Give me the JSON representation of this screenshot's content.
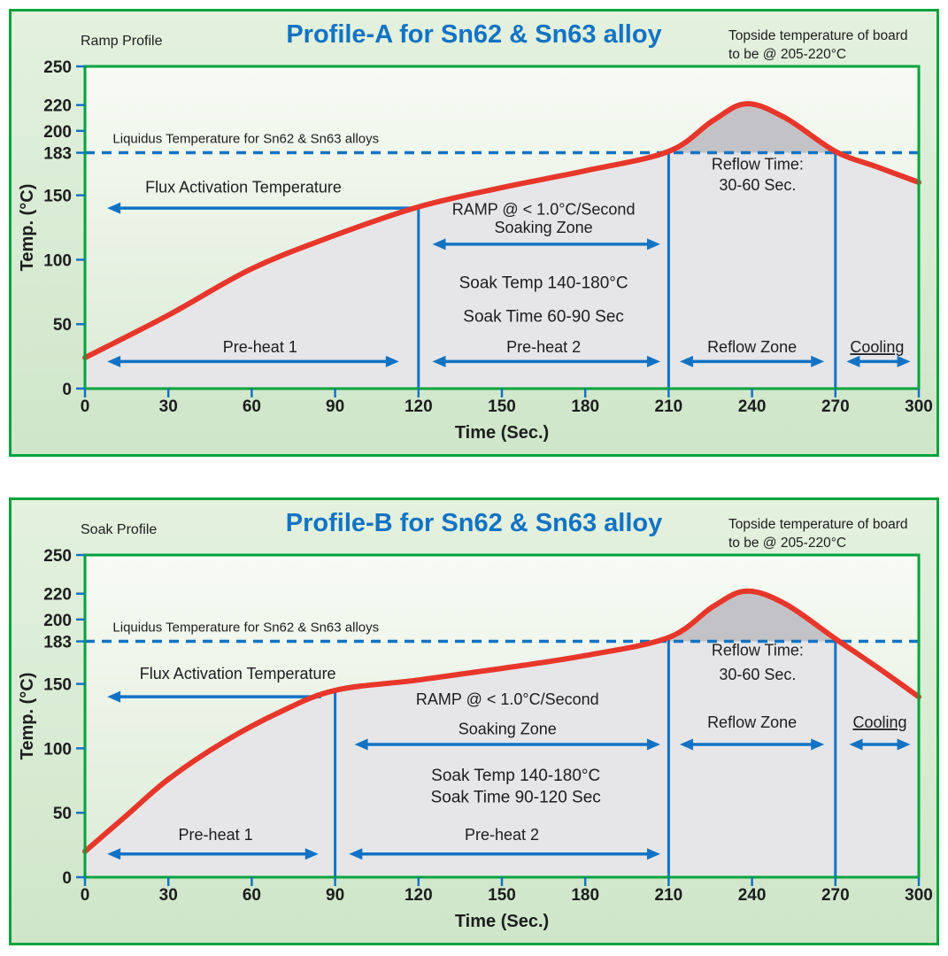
{
  "colors": {
    "panel_green": "#00a33c",
    "blue": "#1273c4",
    "curve_red": "#e8362b",
    "text_dark": "#1d1d1f",
    "area_gray": "#e6e6e8"
  },
  "chart_data": [
    {
      "type": "line",
      "profile_label": "Ramp Profile",
      "title": "Profile-A for Sn62 & Sn63 alloy",
      "topside_note_lines": [
        "Topside temperature of board",
        "to be @ 205-220°C"
      ],
      "xlabel": "Time (Sec.)",
      "ylabel": "Temp. (°C)",
      "xlim": [
        0,
        300
      ],
      "ylim": [
        0,
        250
      ],
      "x_ticks": [
        0,
        30,
        60,
        90,
        120,
        150,
        180,
        210,
        240,
        270,
        300
      ],
      "y_ticks": [
        0,
        50,
        100,
        150,
        183,
        200,
        220,
        250
      ],
      "liquidus_line": {
        "temp": 183,
        "label": "Liquidus Temperature for Sn62 & Sn63 alloys"
      },
      "series": [
        {
          "name": "board-temperature",
          "points": [
            [
              0,
              24
            ],
            [
              30,
              57
            ],
            [
              60,
              93
            ],
            [
              90,
              119
            ],
            [
              120,
              141
            ],
            [
              150,
              156
            ],
            [
              180,
              169
            ],
            [
              210,
              184
            ],
            [
              226,
              208
            ],
            [
              238,
              221
            ],
            [
              252,
              210
            ],
            [
              270,
              184
            ],
            [
              285,
              172
            ],
            [
              300,
              160
            ]
          ]
        }
      ],
      "zone_dividers": [
        {
          "x": 120,
          "top_temp": 141
        },
        {
          "x": 210,
          "top_temp": 184
        },
        {
          "x": 270,
          "top_temp": 184
        }
      ],
      "arrows": [
        {
          "name": "pre-heat-1-span",
          "x1": 8,
          "x2": 113,
          "temp": 21,
          "heads": "both"
        },
        {
          "name": "pre-heat-2-span",
          "x1": 125,
          "x2": 207,
          "temp": 21,
          "heads": "both"
        },
        {
          "name": "reflow-zone-span",
          "x1": 214,
          "x2": 266,
          "temp": 21,
          "heads": "both"
        },
        {
          "name": "cooling-span",
          "x1": 274,
          "x2": 297,
          "temp": 21,
          "heads": "both"
        },
        {
          "name": "flux-activation-span",
          "x1": 8,
          "x2": 118,
          "temp": 140,
          "heads": "left"
        },
        {
          "name": "soaking-zone-span",
          "x1": 125,
          "x2": 207,
          "temp": 112,
          "heads": "both"
        }
      ],
      "annotations": [
        {
          "text": "Flux Activation Temperature",
          "x": 57,
          "temp": 152,
          "size": 18
        },
        {
          "text": "RAMP @ < 1.0°C/Second",
          "x": 165,
          "temp": 135,
          "size": 18
        },
        {
          "text": "Soaking Zone",
          "x": 165,
          "temp": 121,
          "size": 18
        },
        {
          "text": "Soak Temp 140-180°C",
          "x": 165,
          "temp": 78,
          "size": 19
        },
        {
          "text": "Soak Time 60-90 Sec",
          "x": 165,
          "temp": 52,
          "size": 19
        },
        {
          "text": "Reflow Time:",
          "x": 242,
          "temp": 170,
          "size": 18
        },
        {
          "text": "30-60 Sec.",
          "x": 242,
          "temp": 154,
          "size": 18
        },
        {
          "text": "Pre-heat 1",
          "x": 63,
          "temp": 28,
          "size": 18
        },
        {
          "text": "Pre-heat 2",
          "x": 165,
          "temp": 28,
          "size": 18
        },
        {
          "text": "Reflow Zone",
          "x": 240,
          "temp": 28,
          "size": 18
        },
        {
          "text": "Cooling",
          "x": 285,
          "temp": 28,
          "size": 18,
          "underline": true
        }
      ]
    },
    {
      "type": "line",
      "profile_label": "Soak Profile",
      "title": "Profile-B for Sn62 & Sn63 alloy",
      "topside_note_lines": [
        "Topside temperature of board",
        "to be @ 205-220°C"
      ],
      "xlabel": "Time (Sec.)",
      "ylabel": "Temp. (°C)",
      "xlim": [
        0,
        300
      ],
      "ylim": [
        0,
        250
      ],
      "x_ticks": [
        0,
        30,
        60,
        90,
        120,
        150,
        180,
        210,
        240,
        270,
        300
      ],
      "y_ticks": [
        0,
        50,
        100,
        150,
        183,
        200,
        220,
        250
      ],
      "liquidus_line": {
        "temp": 183,
        "label": "Liquidus Temperature for Sn62 & Sn63 alloys"
      },
      "series": [
        {
          "name": "board-temperature",
          "points": [
            [
              0,
              20
            ],
            [
              15,
              48
            ],
            [
              30,
              76
            ],
            [
              50,
              105
            ],
            [
              70,
              128
            ],
            [
              90,
              145
            ],
            [
              120,
              153
            ],
            [
              150,
              162
            ],
            [
              180,
              172
            ],
            [
              210,
              186
            ],
            [
              226,
              210
            ],
            [
              238,
              222
            ],
            [
              252,
              212
            ],
            [
              270,
              185
            ],
            [
              285,
              163
            ],
            [
              300,
              140
            ]
          ]
        }
      ],
      "zone_dividers": [
        {
          "x": 90,
          "top_temp": 145
        },
        {
          "x": 210,
          "top_temp": 186
        },
        {
          "x": 270,
          "top_temp": 185
        }
      ],
      "arrows": [
        {
          "name": "pre-heat-1-span",
          "x1": 8,
          "x2": 84,
          "temp": 18,
          "heads": "both"
        },
        {
          "name": "pre-heat-2-span",
          "x1": 95,
          "x2": 207,
          "temp": 18,
          "heads": "both"
        },
        {
          "name": "reflow-zone-span",
          "x1": 214,
          "x2": 266,
          "temp": 103,
          "heads": "both"
        },
        {
          "name": "cooling-span",
          "x1": 275,
          "x2": 297,
          "temp": 103,
          "heads": "both"
        },
        {
          "name": "flux-activation-span",
          "x1": 8,
          "x2": 85,
          "temp": 140,
          "heads": "left"
        },
        {
          "name": "soaking-zone-span",
          "x1": 97,
          "x2": 207,
          "temp": 103,
          "heads": "both"
        }
      ],
      "annotations": [
        {
          "text": "Flux Activation Temperature",
          "x": 55,
          "temp": 154,
          "size": 18
        },
        {
          "text": "RAMP @ < 1.0°C/Second",
          "x": 152,
          "temp": 134,
          "size": 18
        },
        {
          "text": "Soaking Zone",
          "x": 152,
          "temp": 111,
          "size": 18
        },
        {
          "text": "Soak Temp 140-180°C",
          "x": 155,
          "temp": 75,
          "size": 19
        },
        {
          "text": "Soak Time 90-120 Sec",
          "x": 155,
          "temp": 58,
          "size": 19
        },
        {
          "text": "Reflow Time:",
          "x": 242,
          "temp": 172,
          "size": 18
        },
        {
          "text": "30-60 Sec.",
          "x": 242,
          "temp": 153,
          "size": 18
        },
        {
          "text": "Reflow Zone",
          "x": 240,
          "temp": 116,
          "size": 18
        },
        {
          "text": "Cooling",
          "x": 286,
          "temp": 116,
          "size": 18,
          "underline": true
        },
        {
          "text": "Pre-heat 1",
          "x": 47,
          "temp": 29,
          "size": 18
        },
        {
          "text": "Pre-heat 2",
          "x": 150,
          "temp": 29,
          "size": 18
        }
      ]
    }
  ]
}
